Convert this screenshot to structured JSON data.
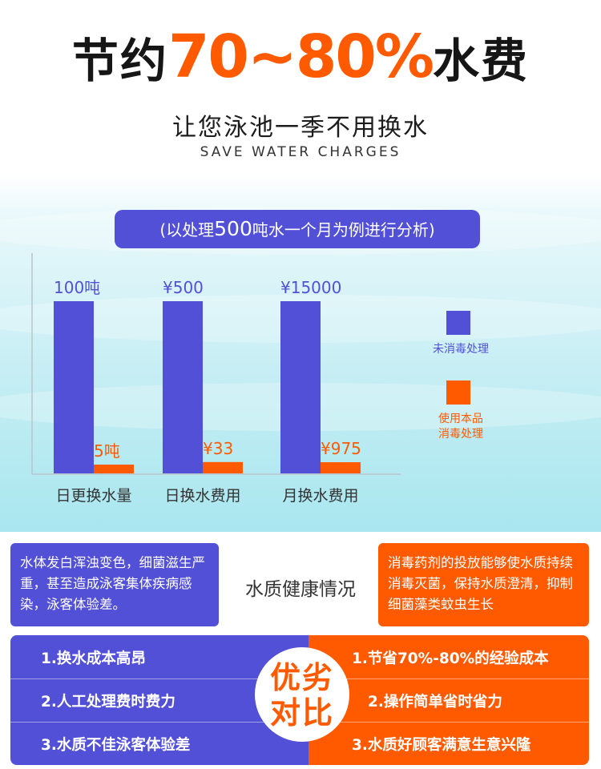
{
  "header": {
    "title_prefix": "节约",
    "title_highlight": "70~80%",
    "title_suffix": "水费",
    "subtitle": "让您泳池一季不用换水",
    "subtitle_en": "SAVE WATER CHARGES"
  },
  "note": {
    "open": "(以处理",
    "number": "500",
    "rest": "吨水一个月为例进行分析)"
  },
  "colors": {
    "untreated": "#5250d6",
    "treated": "#ff5a00"
  },
  "chart_data": {
    "type": "bar",
    "categories": [
      "日更换水量",
      "日换水费用",
      "月换水费用"
    ],
    "series": [
      {
        "name": "未消毒处理",
        "values": [
          100,
          500,
          15000
        ],
        "labels": [
          "100吨",
          "¥500",
          "¥15000"
        ],
        "color": "#5250d6"
      },
      {
        "name": "使用本品\n消毒处理",
        "values": [
          5,
          33,
          975
        ],
        "labels": [
          "5吨",
          "¥33",
          "¥975"
        ],
        "color": "#ff5a00"
      }
    ],
    "legend_position": "right"
  },
  "water_quality": {
    "title": "水质健康情况",
    "left_text": "水体发白浑浊变色，细菌滋生严重，甚至造成泳客集体疾病感染，泳客体验差。",
    "right_text": "消毒药剂的投放能够使水质持续消毒灭菌，保持水质澄清，抑制细菌藻类蚊虫生长"
  },
  "comparison": {
    "badge_top": "优劣",
    "badge_bottom": "对比",
    "left": [
      "1.换水成本高昂",
      "2.人工处理费时费力",
      "3.水质不佳泳客体验差"
    ],
    "right": [
      "1.节省70%-80%的经验成本",
      "2.操作简单省时省力",
      "3.水质好顾客满意生意兴隆"
    ]
  }
}
